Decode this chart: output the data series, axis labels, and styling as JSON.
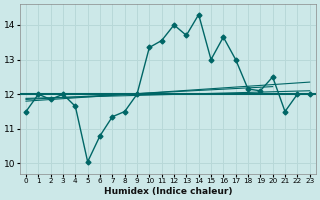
{
  "xlabel": "Humidex (Indice chaleur)",
  "bg_color": "#cce8e8",
  "grid_color": "#b8d8d8",
  "line_color": "#006666",
  "x_ticks": [
    0,
    1,
    2,
    3,
    4,
    5,
    6,
    7,
    8,
    9,
    10,
    11,
    12,
    13,
    14,
    15,
    16,
    17,
    18,
    19,
    20,
    21,
    22,
    23
  ],
  "ylim": [
    9.7,
    14.6
  ],
  "xlim": [
    -0.5,
    23.5
  ],
  "yticks": [
    10,
    11,
    12,
    13,
    14
  ],
  "main_x": [
    0,
    1,
    2,
    3,
    4,
    5,
    6,
    7,
    8,
    9,
    10,
    11,
    12,
    13,
    14,
    15,
    16,
    17,
    18,
    19,
    20,
    21,
    22,
    23
  ],
  "main_y": [
    11.5,
    12.0,
    11.85,
    12.0,
    11.65,
    10.05,
    10.8,
    11.35,
    11.5,
    12.0,
    13.35,
    13.55,
    14.0,
    13.7,
    14.3,
    13.0,
    13.65,
    13.0,
    12.15,
    12.1,
    12.5,
    11.5,
    12.0,
    12.0
  ],
  "flat_line_y": 12.0,
  "trend1_x": [
    0,
    23
  ],
  "trend1_y": [
    11.88,
    12.1
  ],
  "trend2_x": [
    0,
    23
  ],
  "trend2_y": [
    11.8,
    12.35
  ],
  "trend3_x": [
    0,
    20
  ],
  "trend3_y": [
    11.85,
    12.22
  ]
}
